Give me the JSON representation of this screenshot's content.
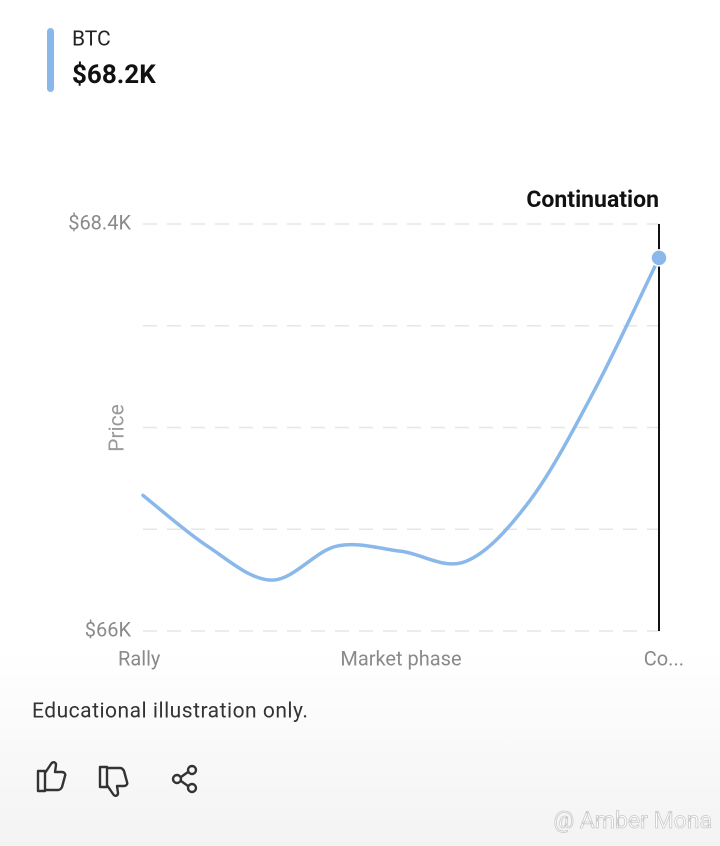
{
  "chart_data": {
    "type": "line",
    "series": [
      {
        "name": "BTC",
        "color": "#8ab8ea",
        "values": [
          66800,
          66500,
          66300,
          66500,
          66470,
          66410,
          66770,
          67420,
          68200
        ]
      }
    ],
    "current": {
      "value": 68200,
      "label": "$68.2K"
    },
    "categories": [
      "Rally",
      null,
      null,
      null,
      "Market phase",
      null,
      null,
      null,
      "Co..."
    ],
    "ylabel": "Price",
    "ylim": [
      66000,
      68400
    ],
    "yticks": [
      {
        "value": 66000,
        "label": "$66K"
      },
      {
        "value": 66600,
        "label": null
      },
      {
        "value": 67200,
        "label": null
      },
      {
        "value": 67800,
        "label": null
      },
      {
        "value": 68400,
        "label": "$68.4K"
      }
    ],
    "grid": true,
    "annotation": "Continuation"
  },
  "note": "Educational illustration only.",
  "watermark": "@ Amber Mona"
}
